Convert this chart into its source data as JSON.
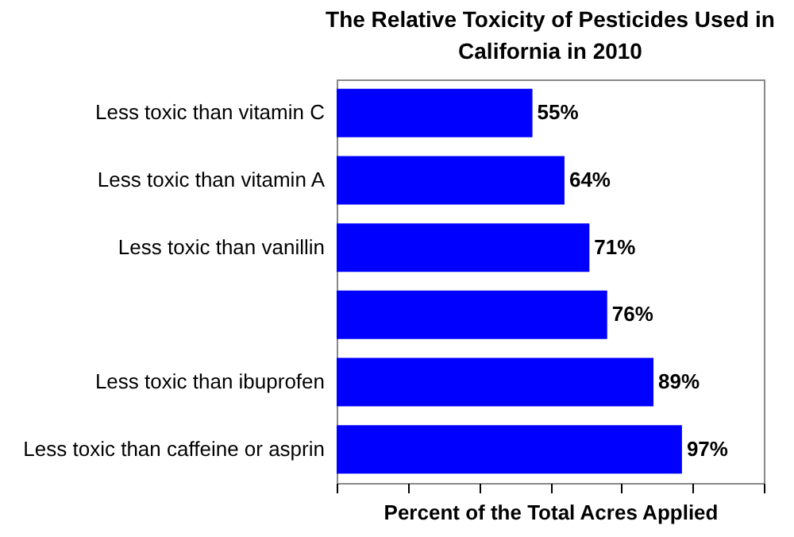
{
  "chart_data": {
    "type": "bar",
    "orientation": "horizontal",
    "title": "The Relative Toxicity of Pesticides Used in California in 2010",
    "xlabel": "Percent of the Total Acres Applied",
    "categories": [
      "Less toxic than vitamin C",
      "Less toxic than vitamin A",
      "Less toxic than vanillin",
      null,
      "Less toxic than ibuprofen",
      "Less toxic than caffeine or asprin"
    ],
    "values": [
      55,
      64,
      71,
      76,
      89,
      97
    ],
    "value_labels": [
      "55%",
      "64%",
      "71%",
      "76%",
      "89%",
      "97%"
    ],
    "color": "#0000ff",
    "xlim": [
      0,
      120
    ],
    "xticks": [
      {
        "value": 0,
        "label": null
      },
      {
        "value": 20,
        "label": null
      },
      {
        "value": 40,
        "label": null
      },
      {
        "value": 60,
        "label": null
      },
      {
        "value": 80,
        "label": null
      },
      {
        "value": 100,
        "label": null
      },
      {
        "value": 120,
        "label": null
      }
    ],
    "tick_labels": "y",
    "grid": false
  }
}
